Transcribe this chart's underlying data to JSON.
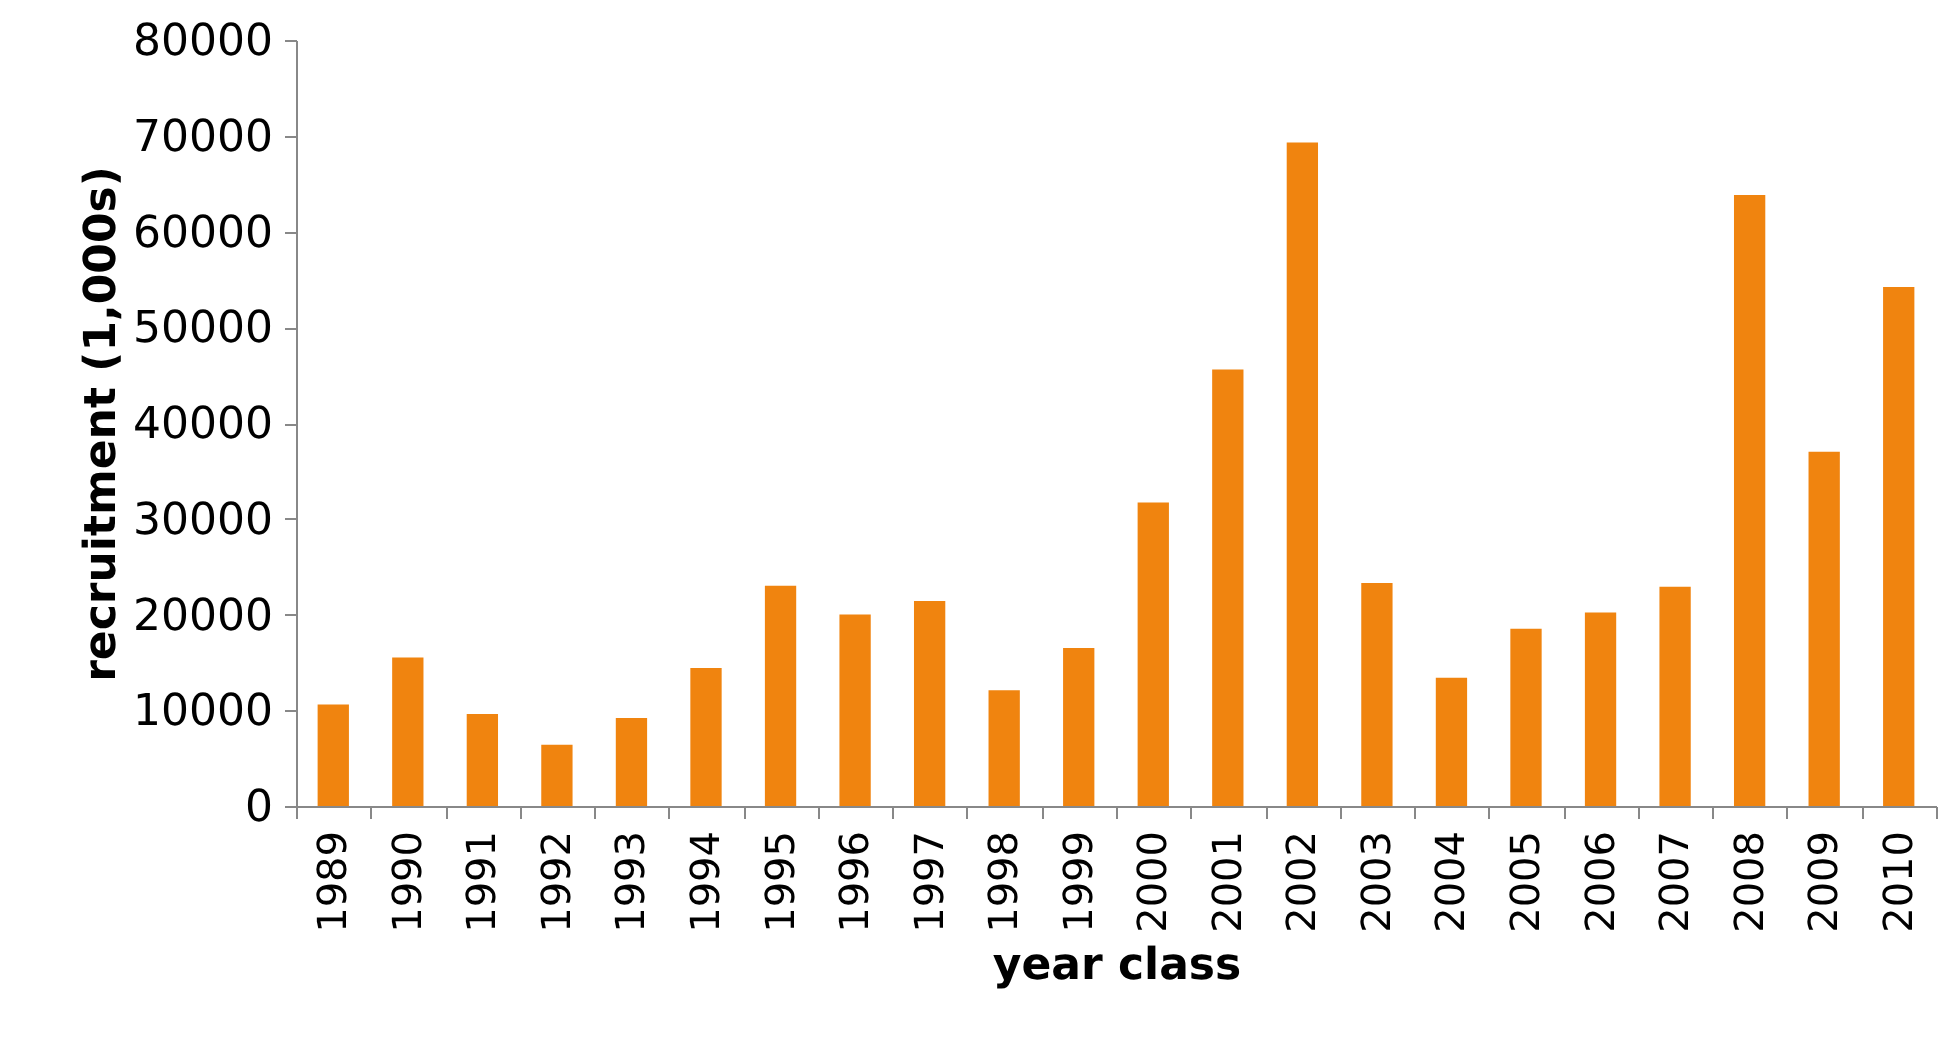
{
  "chart_data": {
    "type": "bar",
    "xlabel": "year class",
    "ylabel": "recruitment (1,000s)",
    "categories": [
      "1989",
      "1990",
      "1991",
      "1992",
      "1993",
      "1994",
      "1995",
      "1996",
      "1997",
      "1998",
      "1999",
      "2000",
      "2001",
      "2002",
      "2003",
      "2004",
      "2005",
      "2006",
      "2007",
      "2008",
      "2009",
      "2010"
    ],
    "values": [
      10600,
      15500,
      9600,
      6400,
      9200,
      14400,
      23000,
      20000,
      21400,
      12100,
      16500,
      31700,
      45600,
      69300,
      23300,
      13400,
      18500,
      20200,
      22900,
      63800,
      37000,
      54200
    ],
    "color": "#f0840f",
    "ylim": [
      0,
      80000
    ],
    "yticks": [
      0,
      10000,
      20000,
      30000,
      40000,
      50000,
      60000,
      70000,
      80000
    ],
    "grid": false
  }
}
